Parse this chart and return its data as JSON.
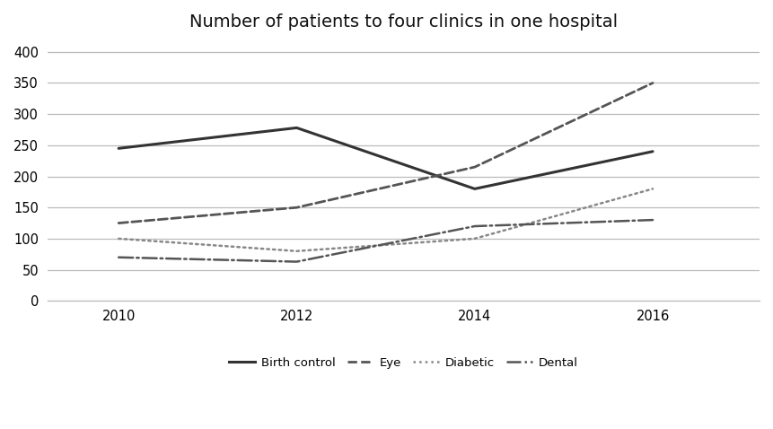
{
  "title": "Number of patients to four clinics in one hospital",
  "years": [
    2010,
    2012,
    2014,
    2016
  ],
  "series": {
    "Birth control": {
      "values": [
        245,
        278,
        180,
        240
      ],
      "color": "#333333",
      "linestyle": "solid",
      "linewidth": 2.2
    },
    "Eye": {
      "values": [
        125,
        150,
        215,
        350
      ],
      "color": "#555555",
      "linestyle": "dashed",
      "linewidth": 2.0
    },
    "Diabetic": {
      "values": [
        100,
        80,
        100,
        180
      ],
      "color": "#888888",
      "linestyle": "dotted",
      "linewidth": 1.8
    },
    "Dental": {
      "values": [
        70,
        63,
        120,
        130
      ],
      "color": "#555555",
      "linestyle": "dashdot",
      "linewidth": 1.8
    }
  },
  "xlim": [
    2009.2,
    2017.2
  ],
  "ylim": [
    0,
    420
  ],
  "yticks": [
    0,
    50,
    100,
    150,
    200,
    250,
    300,
    350,
    400
  ],
  "xticks": [
    2010,
    2012,
    2014,
    2016
  ],
  "background_color": "#ffffff",
  "grid_color": "#bbbbbb",
  "title_fontsize": 14,
  "legend_fontsize": 9.5,
  "tick_fontsize": 10.5
}
